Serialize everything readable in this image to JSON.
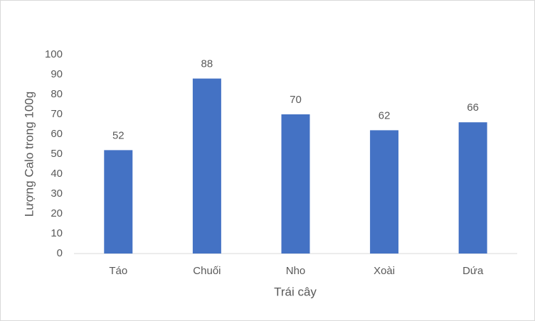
{
  "chart_data": {
    "type": "bar",
    "categories": [
      "Táo",
      "Chuối",
      "Nho",
      "Xoài",
      "Dứa"
    ],
    "values": [
      52,
      88,
      70,
      62,
      66
    ],
    "color": "#4472c4",
    "x_label": "Trái cây",
    "y_label": "Lượng Calo trong 100g",
    "ylim": [
      0,
      100
    ],
    "yticks": [
      0,
      10,
      20,
      30,
      40,
      50,
      60,
      70,
      80,
      90,
      100
    ],
    "grid": false,
    "data_labels": true
  }
}
